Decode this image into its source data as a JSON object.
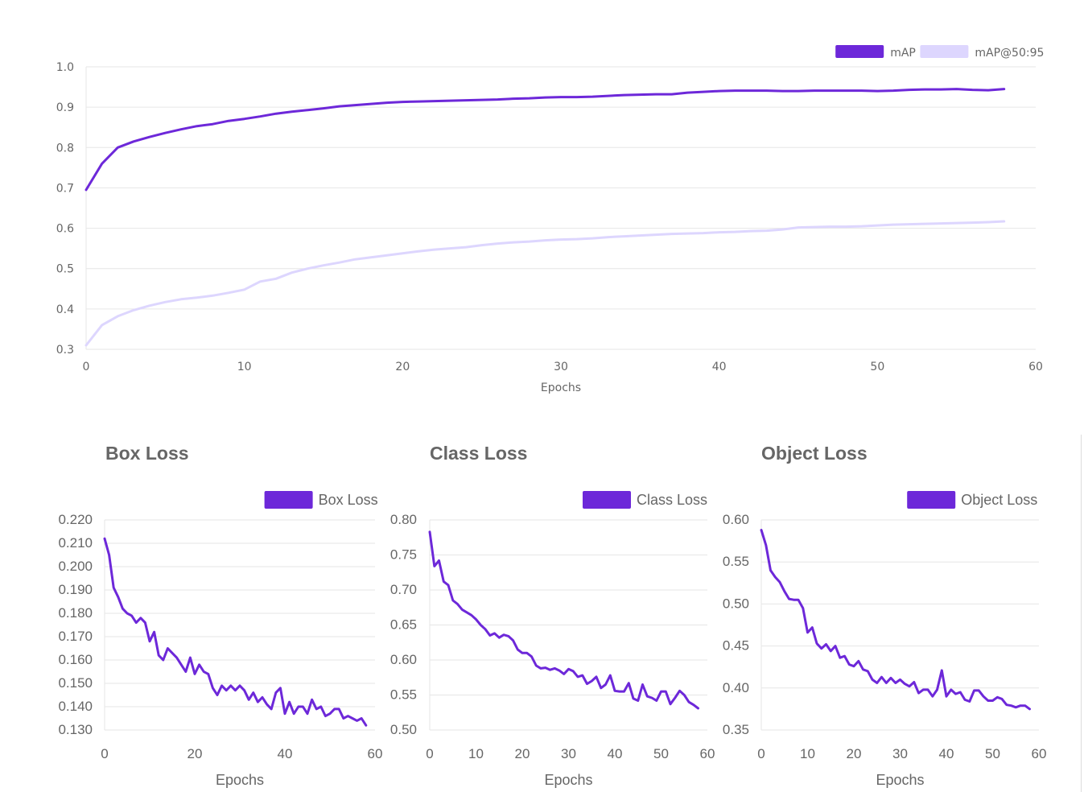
{
  "colors": {
    "primary": "#6d28d9",
    "secondary": "#ddd6fe"
  },
  "chart_data": [
    {
      "type": "line",
      "title": "",
      "xlabel": "Epochs",
      "ylabel": "",
      "xlim": [
        0,
        60
      ],
      "ylim": [
        0.3,
        1.0
      ],
      "xticks": [
        0,
        10,
        20,
        30,
        40,
        50,
        60
      ],
      "yticks": [
        "0.3",
        "0.4",
        "0.5",
        "0.6",
        "0.7",
        "0.8",
        "0.9",
        "1.0"
      ],
      "legend": "top-right",
      "grid": true,
      "series": [
        {
          "name": "mAP",
          "color": "#6d28d9",
          "values": [
            0.695,
            0.76,
            0.8,
            0.815,
            0.826,
            0.836,
            0.845,
            0.853,
            0.858,
            0.866,
            0.871,
            0.877,
            0.884,
            0.889,
            0.893,
            0.897,
            0.902,
            0.905,
            0.908,
            0.911,
            0.913,
            0.914,
            0.915,
            0.916,
            0.917,
            0.918,
            0.919,
            0.921,
            0.922,
            0.924,
            0.925,
            0.925,
            0.926,
            0.928,
            0.93,
            0.931,
            0.932,
            0.932,
            0.936,
            0.938,
            0.94,
            0.941,
            0.941,
            0.941,
            0.94,
            0.94,
            0.941,
            0.941,
            0.941,
            0.941,
            0.94,
            0.941,
            0.943,
            0.944,
            0.944,
            0.945,
            0.943,
            0.942,
            0.945
          ]
        },
        {
          "name": "mAP@50:95",
          "color": "#ddd6fe",
          "values": [
            0.31,
            0.36,
            0.382,
            0.397,
            0.408,
            0.417,
            0.424,
            0.428,
            0.433,
            0.44,
            0.448,
            0.468,
            0.475,
            0.49,
            0.5,
            0.508,
            0.515,
            0.523,
            0.528,
            0.533,
            0.538,
            0.543,
            0.547,
            0.55,
            0.553,
            0.558,
            0.562,
            0.565,
            0.567,
            0.57,
            0.572,
            0.573,
            0.575,
            0.578,
            0.58,
            0.582,
            0.584,
            0.586,
            0.587,
            0.588,
            0.59,
            0.591,
            0.593,
            0.594,
            0.597,
            0.602,
            0.603,
            0.604,
            0.604,
            0.605,
            0.607,
            0.609,
            0.61,
            0.611,
            0.612,
            0.613,
            0.614,
            0.615,
            0.617
          ]
        }
      ]
    },
    {
      "type": "line",
      "title": "Box Loss",
      "xlabel": "Epochs",
      "ylabel": "",
      "xlim": [
        0,
        60
      ],
      "ylim": [
        0.13,
        0.22
      ],
      "xticks": [
        0,
        20,
        40,
        60
      ],
      "yticks": [
        "0.130",
        "0.140",
        "0.150",
        "0.160",
        "0.170",
        "0.180",
        "0.190",
        "0.200",
        "0.210",
        "0.220"
      ],
      "legend": "top-right",
      "grid": true,
      "series": [
        {
          "name": "Box Loss",
          "color": "#6d28d9",
          "values": [
            0.212,
            0.205,
            0.191,
            0.187,
            0.182,
            0.18,
            0.179,
            0.176,
            0.178,
            0.176,
            0.168,
            0.172,
            0.162,
            0.16,
            0.165,
            0.163,
            0.161,
            0.158,
            0.155,
            0.161,
            0.154,
            0.158,
            0.155,
            0.154,
            0.148,
            0.145,
            0.149,
            0.147,
            0.149,
            0.147,
            0.149,
            0.147,
            0.143,
            0.146,
            0.142,
            0.144,
            0.141,
            0.139,
            0.146,
            0.148,
            0.137,
            0.142,
            0.137,
            0.14,
            0.14,
            0.137,
            0.143,
            0.139,
            0.14,
            0.136,
            0.137,
            0.139,
            0.139,
            0.135,
            0.136,
            0.135,
            0.134,
            0.135,
            0.132
          ]
        }
      ]
    },
    {
      "type": "line",
      "title": "Class Loss",
      "xlabel": "Epochs",
      "ylabel": "",
      "xlim": [
        0,
        60
      ],
      "ylim": [
        0.5,
        0.8
      ],
      "xticks": [
        0,
        10,
        20,
        30,
        40,
        50,
        60
      ],
      "yticks": [
        "0.50",
        "0.55",
        "0.60",
        "0.65",
        "0.70",
        "0.75",
        "0.80"
      ],
      "legend": "top-right",
      "grid": true,
      "series": [
        {
          "name": "Class Loss",
          "color": "#6d28d9",
          "values": [
            0.783,
            0.734,
            0.742,
            0.712,
            0.707,
            0.685,
            0.68,
            0.672,
            0.668,
            0.664,
            0.658,
            0.65,
            0.644,
            0.635,
            0.638,
            0.632,
            0.636,
            0.634,
            0.628,
            0.615,
            0.61,
            0.61,
            0.605,
            0.592,
            0.588,
            0.589,
            0.586,
            0.588,
            0.585,
            0.58,
            0.587,
            0.584,
            0.576,
            0.578,
            0.566,
            0.57,
            0.576,
            0.56,
            0.565,
            0.578,
            0.556,
            0.555,
            0.555,
            0.567,
            0.545,
            0.542,
            0.565,
            0.548,
            0.546,
            0.542,
            0.555,
            0.555,
            0.537,
            0.546,
            0.556,
            0.55,
            0.54,
            0.536,
            0.531
          ]
        }
      ]
    },
    {
      "type": "line",
      "title": "Object Loss",
      "xlabel": "Epochs",
      "ylabel": "",
      "xlim": [
        0,
        60
      ],
      "ylim": [
        0.35,
        0.6
      ],
      "xticks": [
        0,
        10,
        20,
        30,
        40,
        50,
        60
      ],
      "yticks": [
        "0.35",
        "0.40",
        "0.45",
        "0.50",
        "0.55",
        "0.60"
      ],
      "legend": "top-right",
      "grid": true,
      "series": [
        {
          "name": "Object Loss",
          "color": "#6d28d9",
          "values": [
            0.588,
            0.57,
            0.54,
            0.532,
            0.526,
            0.515,
            0.506,
            0.505,
            0.505,
            0.495,
            0.466,
            0.472,
            0.453,
            0.447,
            0.452,
            0.444,
            0.45,
            0.436,
            0.438,
            0.428,
            0.426,
            0.432,
            0.422,
            0.42,
            0.41,
            0.406,
            0.413,
            0.406,
            0.412,
            0.406,
            0.41,
            0.405,
            0.402,
            0.407,
            0.394,
            0.398,
            0.398,
            0.39,
            0.398,
            0.421,
            0.39,
            0.398,
            0.393,
            0.395,
            0.386,
            0.384,
            0.397,
            0.397,
            0.39,
            0.385,
            0.385,
            0.389,
            0.387,
            0.38,
            0.379,
            0.377,
            0.379,
            0.379,
            0.375
          ]
        }
      ]
    }
  ]
}
